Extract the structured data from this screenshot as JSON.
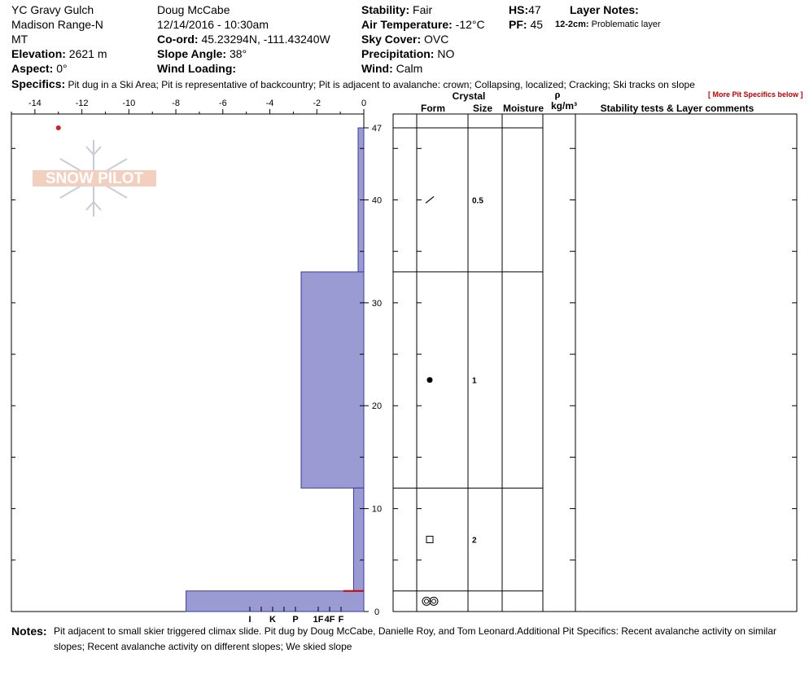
{
  "header": {
    "location": "YC Gravy Gulch",
    "range": "Madison Range-N",
    "state": "MT",
    "elevation_label": "Elevation:",
    "elevation_value": "2621 m",
    "aspect_label": "Aspect:",
    "aspect_value": "0°",
    "observer": "Doug McCabe",
    "datetime": "12/14/2016 - 10:30am",
    "coord_label": "Co-ord:",
    "coord_value": "45.23294N, -111.43240W",
    "slope_label": "Slope Angle:",
    "slope_value": "38°",
    "wind_loading_label": "Wind Loading:",
    "stability_label": "Stability:",
    "stability_value": "Fair",
    "air_temp_label": "Air Temperature:",
    "air_temp_value": "-12°C",
    "sky_label": "Sky Cover:",
    "sky_value": "OVC",
    "precip_label": "Precipitation:",
    "precip_value": "NO",
    "wind_label": "Wind:",
    "wind_value": "Calm",
    "hs_label": "HS:",
    "hs_value": "47",
    "pf_label": "PF:",
    "pf_value": "45",
    "layer_notes_label": "Layer Notes:",
    "layer_note_range": "12-2cm:",
    "layer_note_text": "Problematic layer"
  },
  "specifics": {
    "label": "Specifics:",
    "text": "Pit dug in a Ski Area;  Pit is representative of backcountry;  Pit is adjacent to avalanche: crown;  Collapsing, localized;  Cracking;  Ski tracks on slope"
  },
  "more_specifics": "[ More Pit Specifics below ]",
  "logo_text": "SNOW PILOT",
  "table_headers": {
    "crystal": "Crystal",
    "form": "Form",
    "size": "Size",
    "moisture": "Moisture",
    "rho": "ρ",
    "density_unit": "kg/m³",
    "comments": "Stability tests & Layer comments"
  },
  "notes": {
    "label": "Notes:",
    "text": "Pit adjacent to small skier triggered climax slide. Pit dug by Doug McCabe, Danielle Roy, and Tom Leonard.Additional Pit Specifics: Recent avalanche activity on similar slopes; Recent avalanche activity on different slopes; We skied slope"
  },
  "colors": {
    "hardness_fill": "#9b9bd4",
    "hardness_stroke": "#3a3aa0",
    "temp_point": "#cc2222",
    "layer_note_line": "#cc0000"
  },
  "chart_data": {
    "type": "snow-profile",
    "height_axis": {
      "label": "cm",
      "ticks": [
        0,
        10,
        20,
        30,
        40,
        47
      ],
      "range": [
        0,
        47
      ]
    },
    "temperature_axis": {
      "ticks": [
        -14,
        -12,
        -10,
        -8,
        -6,
        -4,
        -2,
        0
      ],
      "range": [
        -15,
        0
      ]
    },
    "hardness_axis": {
      "labels": [
        "I",
        "K",
        "P",
        "1F",
        "4F",
        "F"
      ],
      "values": [
        5,
        4,
        3,
        2,
        1.5,
        1
      ],
      "extra_ticks": [
        3.5,
        4.5
      ]
    },
    "hardness_layers": [
      {
        "top": 47,
        "bottom": 33,
        "hardness": 0.25
      },
      {
        "top": 33,
        "bottom": 12,
        "hardness": 2.75
      },
      {
        "top": 12,
        "bottom": 2,
        "hardness": 0.45
      },
      {
        "top": 2,
        "bottom": 0,
        "hardness": 7.8
      }
    ],
    "temperature_points": [
      {
        "depth": 47,
        "temp": -13
      }
    ],
    "layer_note_band": {
      "top": 12,
      "bottom": 2
    },
    "layers": [
      {
        "top": 47,
        "bottom": 33,
        "form": "decomposing",
        "size": "0.5"
      },
      {
        "top": 33,
        "bottom": 12,
        "form": "rounded",
        "size": "1"
      },
      {
        "top": 12,
        "bottom": 2,
        "form": "faceted",
        "size": "2"
      },
      {
        "top": 2,
        "bottom": 0,
        "form": "melt-freeze",
        "size": ""
      }
    ]
  }
}
